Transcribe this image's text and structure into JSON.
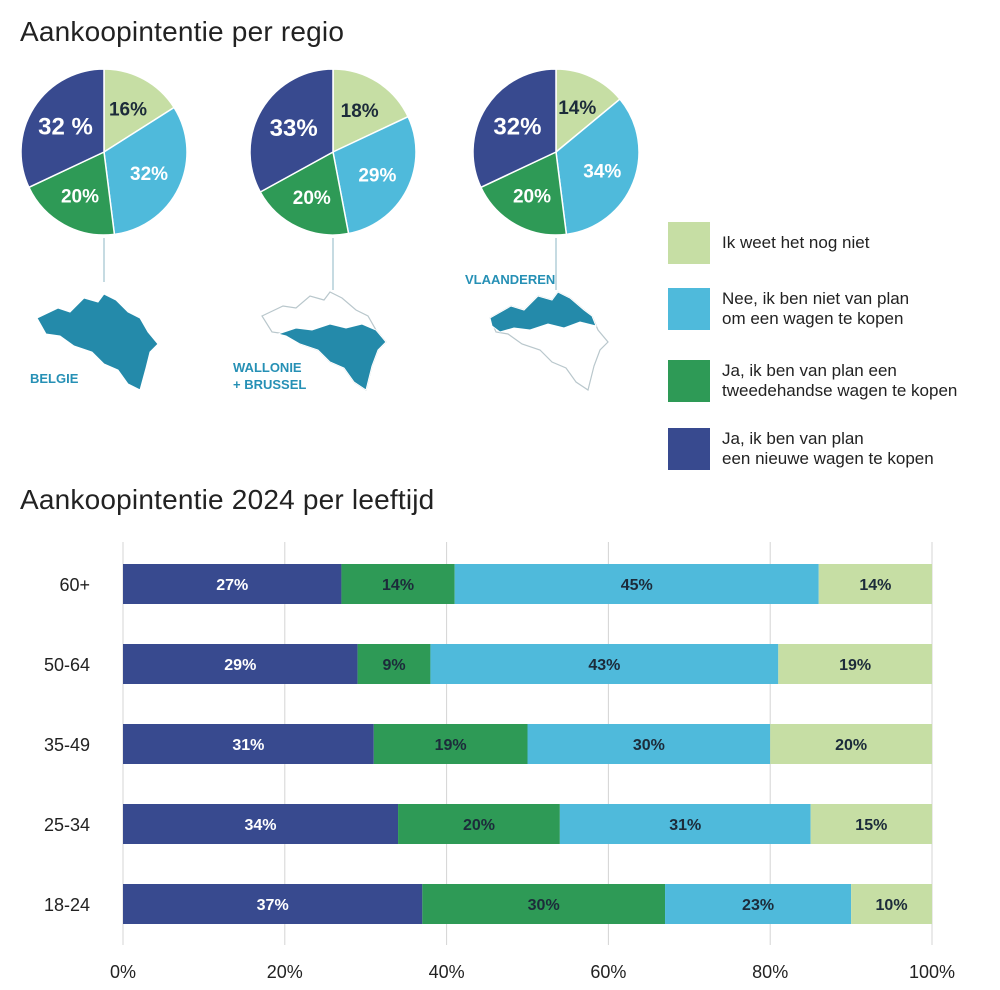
{
  "colors": {
    "new_car": "#384a8f",
    "second_hand": "#2e9a56",
    "no_plan": "#4fbadb",
    "dont_know": "#c6dea4",
    "map": "#248aaa",
    "region_label": "#2690b5"
  },
  "pie_section": {
    "title": "Aankoopintentie per regio"
  },
  "bar_section": {
    "title": "Aankoopintentie 2024 per leeftijd"
  },
  "legend": [
    {
      "key": "dont_know",
      "label": "Ik weet het nog niet"
    },
    {
      "key": "no_plan",
      "label": "Nee, ik ben niet van plan\nom een wagen te kopen"
    },
    {
      "key": "second_hand",
      "label": "Ja, ik ben van plan een\ntweedehandse wagen te kopen"
    },
    {
      "key": "new_car",
      "label": "Ja, ik ben van plan\neen nieuwe wagen te kopen"
    }
  ],
  "chart_data": [
    {
      "type": "pie",
      "title": "Aankoopintentie per regio",
      "series_order": [
        "dont_know",
        "no_plan",
        "second_hand",
        "new_car"
      ],
      "pies": [
        {
          "region": "BELGIE",
          "values": {
            "dont_know": 16,
            "no_plan": 32,
            "second_hand": 20,
            "new_car": 32
          },
          "labels": {
            "dont_know": "16%",
            "no_plan": "32%",
            "second_hand": "20%",
            "new_car": "32 %"
          }
        },
        {
          "region": "WALLONIE\n+ BRUSSEL",
          "values": {
            "dont_know": 18,
            "no_plan": 29,
            "second_hand": 20,
            "new_car": 33
          },
          "labels": {
            "dont_know": "18%",
            "no_plan": "29%",
            "second_hand": "20%",
            "new_car": "33%"
          }
        },
        {
          "region": "VLAANDEREN",
          "values": {
            "dont_know": 14,
            "no_plan": 34,
            "second_hand": 20,
            "new_car": 32
          },
          "labels": {
            "dont_know": "14%",
            "no_plan": "34%",
            "second_hand": "20%",
            "new_car": "32%"
          }
        }
      ]
    },
    {
      "type": "bar",
      "orientation": "horizontal",
      "stacked": true,
      "title": "Aankoopintentie 2024 per leeftijd",
      "categories": [
        "60+",
        "50-64",
        "35-49",
        "25-34",
        "18-24"
      ],
      "series": [
        {
          "key": "new_car",
          "name": "Ja, ik ben van plan een nieuwe wagen te kopen",
          "values": [
            27,
            29,
            31,
            34,
            37
          ]
        },
        {
          "key": "second_hand",
          "name": "Ja, ik ben van plan een tweedehandse wagen te kopen",
          "values": [
            14,
            9,
            19,
            20,
            30
          ]
        },
        {
          "key": "no_plan",
          "name": "Nee, ik ben niet van plan om een wagen te kopen",
          "values": [
            45,
            43,
            30,
            31,
            23
          ]
        },
        {
          "key": "dont_know",
          "name": "Ik weet het nog niet",
          "values": [
            14,
            19,
            20,
            15,
            10
          ]
        }
      ],
      "xlim": [
        0,
        100
      ],
      "xticks": [
        "0%",
        "20%",
        "40%",
        "60%",
        "80%",
        "100%"
      ],
      "grid": true
    }
  ]
}
